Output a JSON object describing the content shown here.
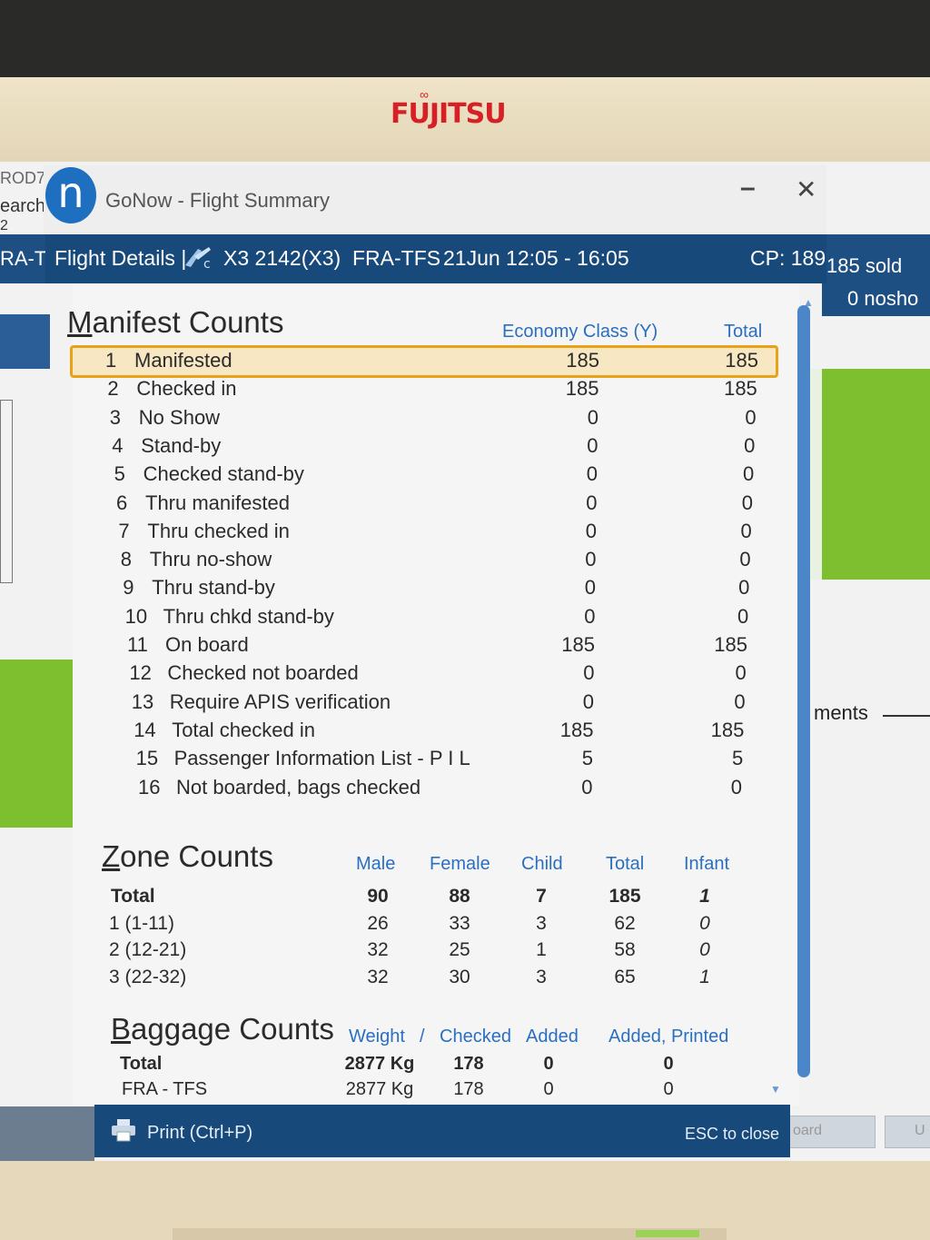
{
  "monitor": {
    "brand": "FUJITSU"
  },
  "background": {
    "left_labels": [
      "ROD7",
      "earch",
      "2",
      "RA-T"
    ],
    "right_sold": "185 sold",
    "right_noshow": "0 nosho",
    "right_partial": "ments",
    "right_btn1": "oard",
    "right_btn2": "U"
  },
  "window": {
    "logo": "n",
    "title": "GoNow - Flight Summary",
    "controls": {
      "minimize": "–",
      "close": "✕"
    }
  },
  "header": {
    "label": "Flight Details |",
    "airline_icon": "airline-logo-icon",
    "flight": "X3 2142(X3)",
    "route": "FRA-TFS",
    "date_time": "21Jun 12:05 - 16:05",
    "cp": "CP: 189"
  },
  "manifest": {
    "title": "Manifest Counts",
    "columns": [
      "Economy Class (Y)",
      "Total"
    ],
    "rows": [
      {
        "n": "1",
        "label": "Manifested",
        "y": "185",
        "total": "185"
      },
      {
        "n": "2",
        "label": "Checked in",
        "y": "185",
        "total": "185"
      },
      {
        "n": "3",
        "label": "No Show",
        "y": "0",
        "total": "0"
      },
      {
        "n": "4",
        "label": "Stand-by",
        "y": "0",
        "total": "0"
      },
      {
        "n": "5",
        "label": "Checked stand-by",
        "y": "0",
        "total": "0"
      },
      {
        "n": "6",
        "label": "Thru manifested",
        "y": "0",
        "total": "0"
      },
      {
        "n": "7",
        "label": "Thru checked in",
        "y": "0",
        "total": "0"
      },
      {
        "n": "8",
        "label": "Thru no-show",
        "y": "0",
        "total": "0"
      },
      {
        "n": "9",
        "label": "Thru stand-by",
        "y": "0",
        "total": "0"
      },
      {
        "n": "10",
        "label": "Thru chkd stand-by",
        "y": "0",
        "total": "0"
      },
      {
        "n": "11",
        "label": "On board",
        "y": "185",
        "total": "185"
      },
      {
        "n": "12",
        "label": "Checked not boarded",
        "y": "0",
        "total": "0"
      },
      {
        "n": "13",
        "label": "Require APIS verification",
        "y": "0",
        "total": "0"
      },
      {
        "n": "14",
        "label": "Total checked in",
        "y": "185",
        "total": "185"
      },
      {
        "n": "15",
        "label": "Passenger Information List - P I L",
        "y": "5",
        "total": "5"
      },
      {
        "n": "16",
        "label": "Not boarded, bags checked",
        "y": "0",
        "total": "0"
      }
    ],
    "highlighted_row": "1"
  },
  "zone": {
    "title": "Zone Counts",
    "columns": [
      "Male",
      "Female",
      "Child",
      "Total",
      "Infant"
    ],
    "rows": [
      {
        "label": "Total",
        "male": "90",
        "female": "88",
        "child": "7",
        "total": "185",
        "infant": "1"
      },
      {
        "label": "1 (1-11)",
        "male": "26",
        "female": "33",
        "child": "3",
        "total": "62",
        "infant": "0"
      },
      {
        "label": "2 (12-21)",
        "male": "32",
        "female": "25",
        "child": "1",
        "total": "58",
        "infant": "0"
      },
      {
        "label": "3 (22-32)",
        "male": "32",
        "female": "30",
        "child": "3",
        "total": "65",
        "infant": "1"
      }
    ]
  },
  "baggage": {
    "title": "Baggage Counts",
    "columns": [
      "Weight",
      "/",
      "Checked",
      "Added",
      "Added, Printed"
    ],
    "rows": [
      {
        "label": "Total",
        "weight": "2877 Kg",
        "checked": "178",
        "added": "0",
        "added_printed": "0"
      },
      {
        "label": "FRA - TFS",
        "weight": "2877 Kg",
        "checked": "178",
        "added": "0",
        "added_printed": "0"
      }
    ]
  },
  "footer": {
    "print": "Print (Ctrl+P)",
    "esc": "ESC to close"
  }
}
